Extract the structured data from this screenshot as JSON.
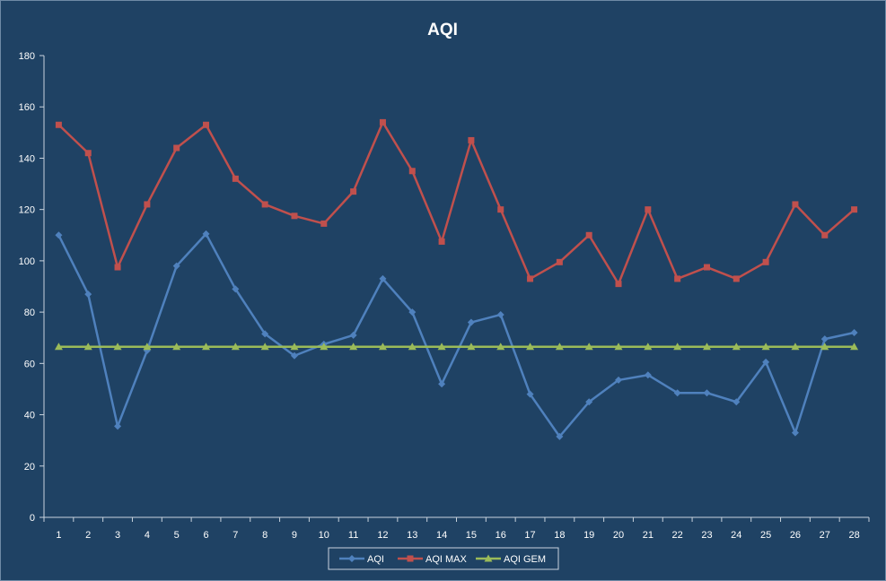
{
  "chart_data": {
    "type": "line",
    "title": "AQI",
    "xlabel": "",
    "ylabel": "",
    "categories": [
      "1",
      "2",
      "3",
      "4",
      "5",
      "6",
      "7",
      "8",
      "9",
      "10",
      "11",
      "12",
      "13",
      "14",
      "15",
      "16",
      "17",
      "18",
      "19",
      "20",
      "21",
      "22",
      "23",
      "24",
      "25",
      "26",
      "27",
      "28"
    ],
    "ylim": [
      0,
      180
    ],
    "yticks": [
      0,
      20,
      40,
      60,
      80,
      100,
      120,
      140,
      160,
      180
    ],
    "grid": false,
    "legend": "bottom",
    "series": [
      {
        "name": "AQI",
        "color": "#4f81bd",
        "marker": "diamond",
        "values": [
          110,
          87,
          35.5,
          65,
          98,
          110.5,
          89,
          71.5,
          63,
          67.5,
          71,
          93,
          80,
          52,
          76,
          79,
          48,
          31.5,
          45,
          53.5,
          55.5,
          48.5,
          48.5,
          45,
          60.5,
          33,
          69.5,
          72
        ]
      },
      {
        "name": "AQI MAX",
        "color": "#c0504d",
        "marker": "square",
        "values": [
          153,
          142,
          97.5,
          122,
          144,
          153,
          132,
          122,
          117.5,
          114.5,
          127,
          154,
          135,
          107.5,
          147,
          120,
          93,
          99.5,
          110,
          91,
          120,
          93,
          97.5,
          93,
          99.5,
          122,
          110,
          120
        ]
      },
      {
        "name": "AQI GEM",
        "color": "#9bbb59",
        "marker": "triangle",
        "values": [
          66.5,
          66.5,
          66.5,
          66.5,
          66.5,
          66.5,
          66.5,
          66.5,
          66.5,
          66.5,
          66.5,
          66.5,
          66.5,
          66.5,
          66.5,
          66.5,
          66.5,
          66.5,
          66.5,
          66.5,
          66.5,
          66.5,
          66.5,
          66.5,
          66.5,
          66.5,
          66.5,
          66.5
        ]
      }
    ]
  }
}
